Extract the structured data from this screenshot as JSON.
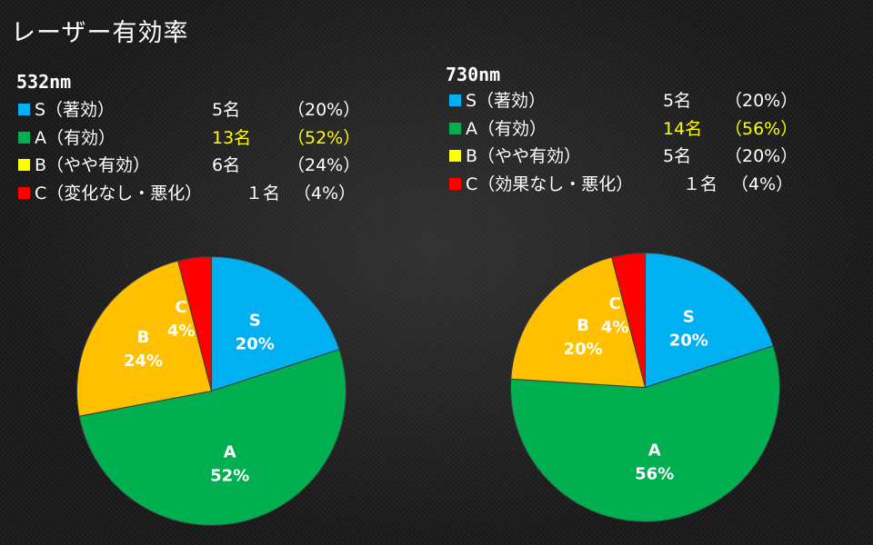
{
  "title": "レーザー有効率",
  "colors": {
    "S": "#00b0f0",
    "A": "#00b050",
    "B": "#ffc000",
    "C": "#ff0000",
    "highlight": "#ffff00"
  },
  "chart_data": [
    {
      "type": "pie",
      "title": "532nm",
      "legend": [
        {
          "key": "S",
          "label": "S（著効）",
          "count": "5名",
          "percent": "（20%）",
          "highlight": false
        },
        {
          "key": "A",
          "label": "A（有効）",
          "count": "13名",
          "percent": "（52%）",
          "highlight": true
        },
        {
          "key": "B",
          "label": "B（やや有効）",
          "count": "6名",
          "percent": "（24%）",
          "highlight": false
        },
        {
          "key": "C",
          "label": "C（変化なし・悪化）",
          "count": "１名",
          "percent": "（4%）",
          "highlight": false
        }
      ],
      "slices": [
        {
          "key": "S",
          "name": "S",
          "value": 20,
          "label": "20%"
        },
        {
          "key": "A",
          "name": "A",
          "value": 52,
          "label": "52%"
        },
        {
          "key": "B",
          "name": "B",
          "value": 24,
          "label": "24%"
        },
        {
          "key": "C",
          "name": "C",
          "value": 4,
          "label": "4%"
        }
      ]
    },
    {
      "type": "pie",
      "title": "730nm",
      "legend": [
        {
          "key": "S",
          "label": "S（著効）",
          "count": "5名",
          "percent": "（20%）",
          "highlight": false
        },
        {
          "key": "A",
          "label": "A（有効）",
          "count": "14名",
          "percent": "（56%）",
          "highlight": true
        },
        {
          "key": "B",
          "label": "B（やや有効）",
          "count": "5名",
          "percent": "（20%）",
          "highlight": false
        },
        {
          "key": "C",
          "label": "C（効果なし・悪化）",
          "count": "１名",
          "percent": "（4%）",
          "highlight": false
        }
      ],
      "slices": [
        {
          "key": "S",
          "name": "S",
          "value": 20,
          "label": "20%"
        },
        {
          "key": "A",
          "name": "A",
          "value": 56,
          "label": "56%"
        },
        {
          "key": "B",
          "name": "B",
          "value": 20,
          "label": "20%"
        },
        {
          "key": "C",
          "name": "C",
          "value": 4,
          "label": "4%"
        }
      ]
    }
  ]
}
